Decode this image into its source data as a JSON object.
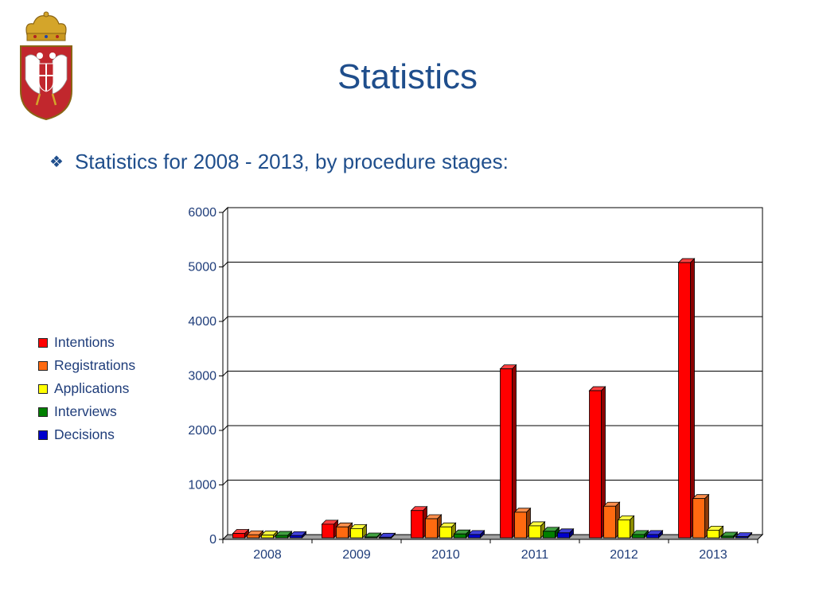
{
  "slide": {
    "title": "Statistics",
    "bullet_symbol": "❖",
    "bullet_text": "Statistics for 2008 - 2013, by procedure stages:"
  },
  "logo": {
    "icon": "serbian-coat-of-arms-icon"
  },
  "chart_data": {
    "type": "bar",
    "style": "3d-clustered-column",
    "categories": [
      "2008",
      "2009",
      "2010",
      "2011",
      "2012",
      "2013"
    ],
    "series": [
      {
        "name": "Intentions",
        "color": "#ff0000",
        "values": [
          80,
          250,
          500,
          3100,
          2700,
          5050
        ]
      },
      {
        "name": "Registrations",
        "color": "#ff6a10",
        "values": [
          55,
          200,
          350,
          470,
          580,
          720
        ]
      },
      {
        "name": "Applications",
        "color": "#ffff00",
        "values": [
          50,
          170,
          200,
          220,
          330,
          140
        ]
      },
      {
        "name": "Interviews",
        "color": "#008000",
        "values": [
          45,
          15,
          70,
          120,
          60,
          30
        ]
      },
      {
        "name": "Decisions",
        "color": "#0000cc",
        "values": [
          40,
          10,
          60,
          90,
          60,
          20
        ]
      }
    ],
    "ylim": [
      0,
      6000
    ],
    "yticks": [
      0,
      1000,
      2000,
      3000,
      4000,
      5000,
      6000
    ],
    "grid": true,
    "legend_position": "left"
  }
}
